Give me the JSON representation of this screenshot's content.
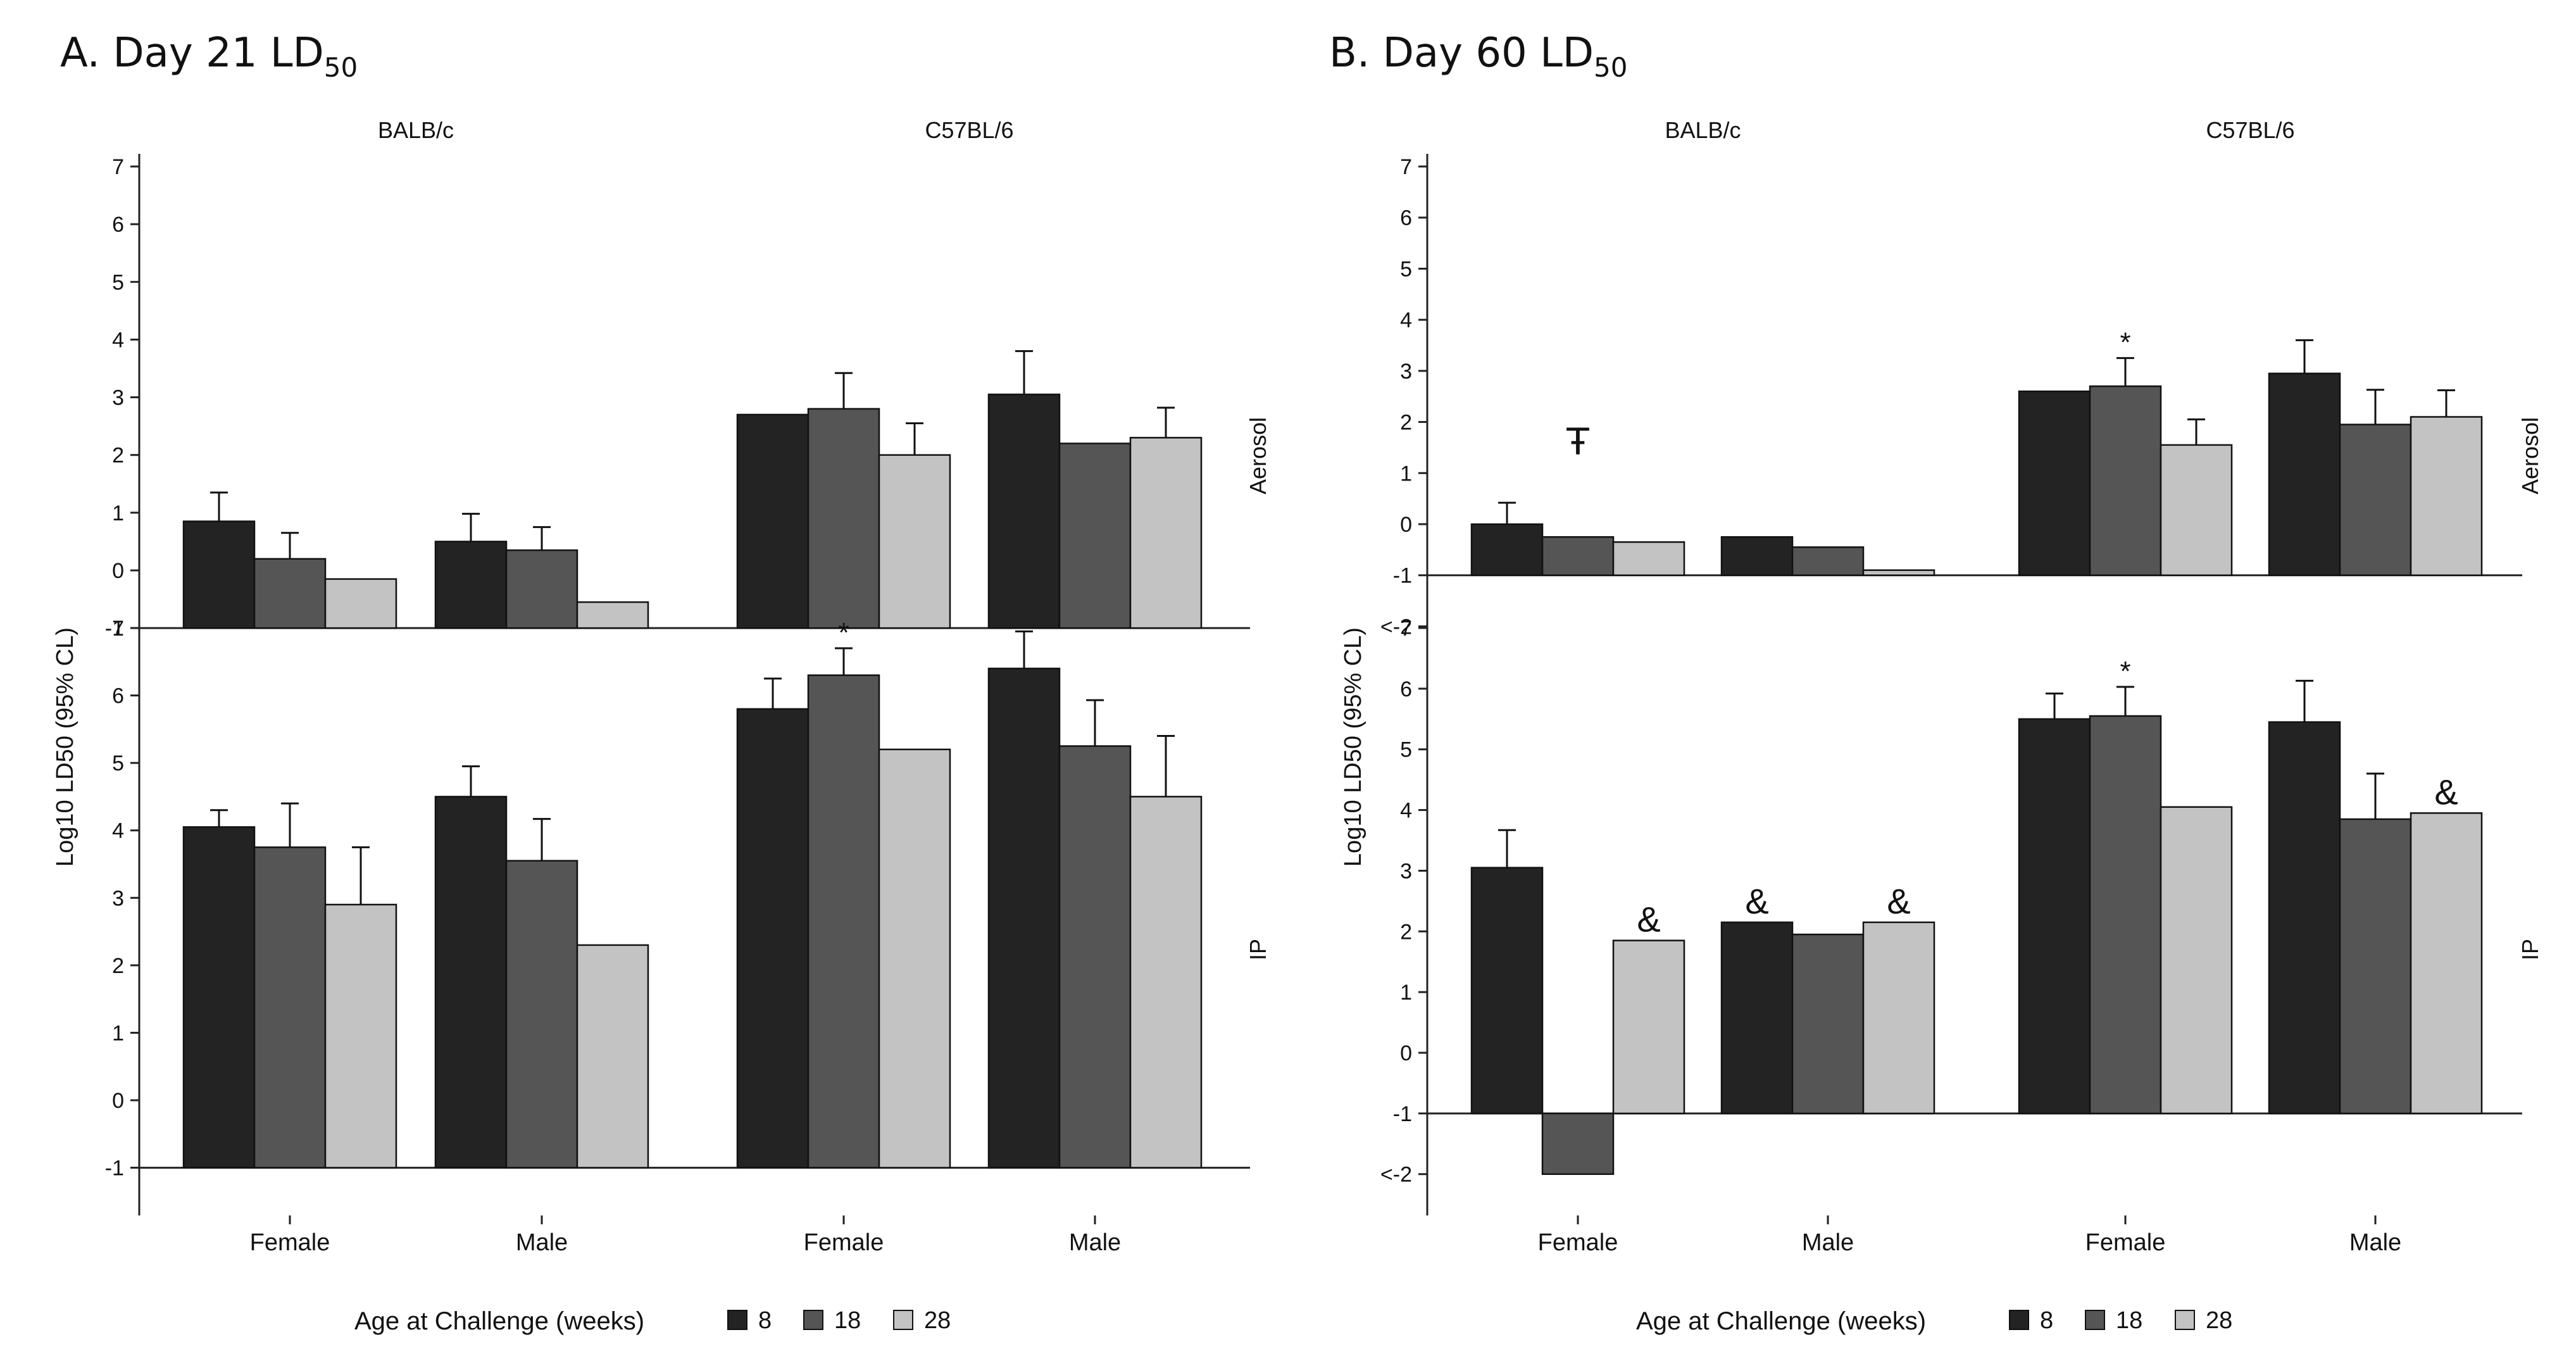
{
  "chart_data": [
    {
      "type": "bar",
      "panel": "A",
      "title": "A.  Day 21 LD",
      "title_sub": "50",
      "ylabel": "Log10 LD50 (95% CL)",
      "legend_title": "Age at Challenge (weeks)",
      "legend_placement": "bottom",
      "series": [
        {
          "name": "8",
          "color": "#232323"
        },
        {
          "name": "18",
          "color": "#555555"
        },
        {
          "name": "28",
          "color": "#c3c3c3"
        }
      ],
      "strains": [
        "BALB/c",
        "C57BL/6"
      ],
      "sexes": [
        "Female",
        "Male"
      ],
      "subpanels": [
        {
          "route": "Aerosol",
          "ylim": [
            -1,
            7
          ],
          "yticks": [
            "-1",
            "0",
            "1",
            "2",
            "3",
            "4",
            "5",
            "6",
            "7"
          ],
          "groups": [
            {
              "strain": "BALB/c",
              "sex": "Female",
              "values": [
                0.85,
                0.2,
                -0.15
              ],
              "errors": [
                0.5,
                0.45,
                null
              ],
              "annotations": [
                null,
                null,
                null
              ]
            },
            {
              "strain": "BALB/c",
              "sex": "Male",
              "values": [
                0.5,
                0.35,
                -0.55
              ],
              "errors": [
                0.48,
                0.4,
                null
              ],
              "annotations": [
                null,
                null,
                null
              ]
            },
            {
              "strain": "C57BL/6",
              "sex": "Female",
              "values": [
                2.7,
                2.8,
                2.0
              ],
              "errors": [
                null,
                0.62,
                0.55
              ],
              "annotations": [
                null,
                null,
                null
              ]
            },
            {
              "strain": "C57BL/6",
              "sex": "Male",
              "values": [
                3.05,
                2.2,
                2.3
              ],
              "errors": [
                0.75,
                null,
                0.52
              ],
              "annotations": [
                null,
                null,
                null
              ]
            }
          ]
        },
        {
          "route": "IP",
          "ylim": [
            -1,
            7
          ],
          "yticks": [
            "-1",
            "0",
            "1",
            "2",
            "3",
            "4",
            "5",
            "6",
            "7"
          ],
          "groups": [
            {
              "strain": "BALB/c",
              "sex": "Female",
              "values": [
                4.05,
                3.75,
                2.9
              ],
              "errors": [
                0.25,
                0.65,
                0.85
              ],
              "annotations": [
                null,
                null,
                null
              ]
            },
            {
              "strain": "BALB/c",
              "sex": "Male",
              "values": [
                4.5,
                3.55,
                2.3
              ],
              "errors": [
                0.45,
                0.62,
                null
              ],
              "annotations": [
                null,
                null,
                null
              ]
            },
            {
              "strain": "C57BL/6",
              "sex": "Female",
              "values": [
                5.8,
                6.3,
                5.2
              ],
              "errors": [
                0.45,
                0.4,
                null
              ],
              "annotations": [
                null,
                "*",
                null
              ]
            },
            {
              "strain": "C57BL/6",
              "sex": "Male",
              "values": [
                6.4,
                5.25,
                4.5
              ],
              "errors": [
                0.55,
                0.68,
                0.9
              ],
              "annotations": [
                null,
                null,
                null
              ]
            }
          ]
        }
      ]
    },
    {
      "type": "bar",
      "panel": "B",
      "title": "B.  Day 60 LD",
      "title_sub": "50",
      "ylabel": "Log10 LD50 (95% CL)",
      "legend_title": "Age at Challenge (weeks)",
      "legend_placement": "bottom",
      "series": [
        {
          "name": "8",
          "color": "#232323"
        },
        {
          "name": "18",
          "color": "#555555"
        },
        {
          "name": "28",
          "color": "#c3c3c3"
        }
      ],
      "strains": [
        "BALB/c",
        "C57BL/6"
      ],
      "sexes": [
        "Female",
        "Male"
      ],
      "subpanels": [
        {
          "route": "Aerosol",
          "ylim": [
            -2,
            7
          ],
          "baseline": -1,
          "yticks": [
            "<-2",
            "-1",
            "0",
            "1",
            "2",
            "3",
            "4",
            "5",
            "6",
            "7"
          ],
          "groups": [
            {
              "strain": "BALB/c",
              "sex": "Female",
              "values": [
                0.0,
                -0.25,
                -0.35
              ],
              "errors": [
                0.42,
                null,
                null
              ],
              "annotations": [
                null,
                "Ŧ",
                null
              ]
            },
            {
              "strain": "BALB/c",
              "sex": "Male",
              "values": [
                -0.25,
                -0.45,
                -0.9
              ],
              "errors": [
                null,
                null,
                null
              ],
              "annotations": [
                null,
                null,
                null
              ]
            },
            {
              "strain": "C57BL/6",
              "sex": "Female",
              "values": [
                2.6,
                2.7,
                1.55
              ],
              "errors": [
                null,
                0.55,
                0.5
              ],
              "annotations": [
                null,
                "*",
                null
              ]
            },
            {
              "strain": "C57BL/6",
              "sex": "Male",
              "values": [
                2.95,
                1.95,
                2.1
              ],
              "errors": [
                0.65,
                0.68,
                0.52
              ],
              "annotations": [
                null,
                null,
                null
              ]
            }
          ]
        },
        {
          "route": "IP",
          "ylim": [
            -2,
            7
          ],
          "baseline": -1,
          "yticks": [
            "<-2",
            "-1",
            "0",
            "1",
            "2",
            "3",
            "4",
            "5",
            "6",
            "7"
          ],
          "groups": [
            {
              "strain": "BALB/c",
              "sex": "Female",
              "values": [
                3.05,
                -2.0,
                1.85
              ],
              "errors": [
                0.62,
                null,
                null
              ],
              "annotations": [
                null,
                null,
                "&"
              ]
            },
            {
              "strain": "BALB/c",
              "sex": "Male",
              "values": [
                2.15,
                1.95,
                2.15
              ],
              "errors": [
                null,
                null,
                null
              ],
              "annotations": [
                "&",
                null,
                "&"
              ]
            },
            {
              "strain": "C57BL/6",
              "sex": "Female",
              "values": [
                5.5,
                5.55,
                4.05
              ],
              "errors": [
                0.42,
                0.48,
                null
              ],
              "annotations": [
                null,
                "*",
                null
              ]
            },
            {
              "strain": "C57BL/6",
              "sex": "Male",
              "values": [
                5.45,
                3.85,
                3.95
              ],
              "errors": [
                0.68,
                0.75,
                null
              ],
              "annotations": [
                null,
                null,
                "&"
              ]
            }
          ]
        }
      ]
    }
  ]
}
